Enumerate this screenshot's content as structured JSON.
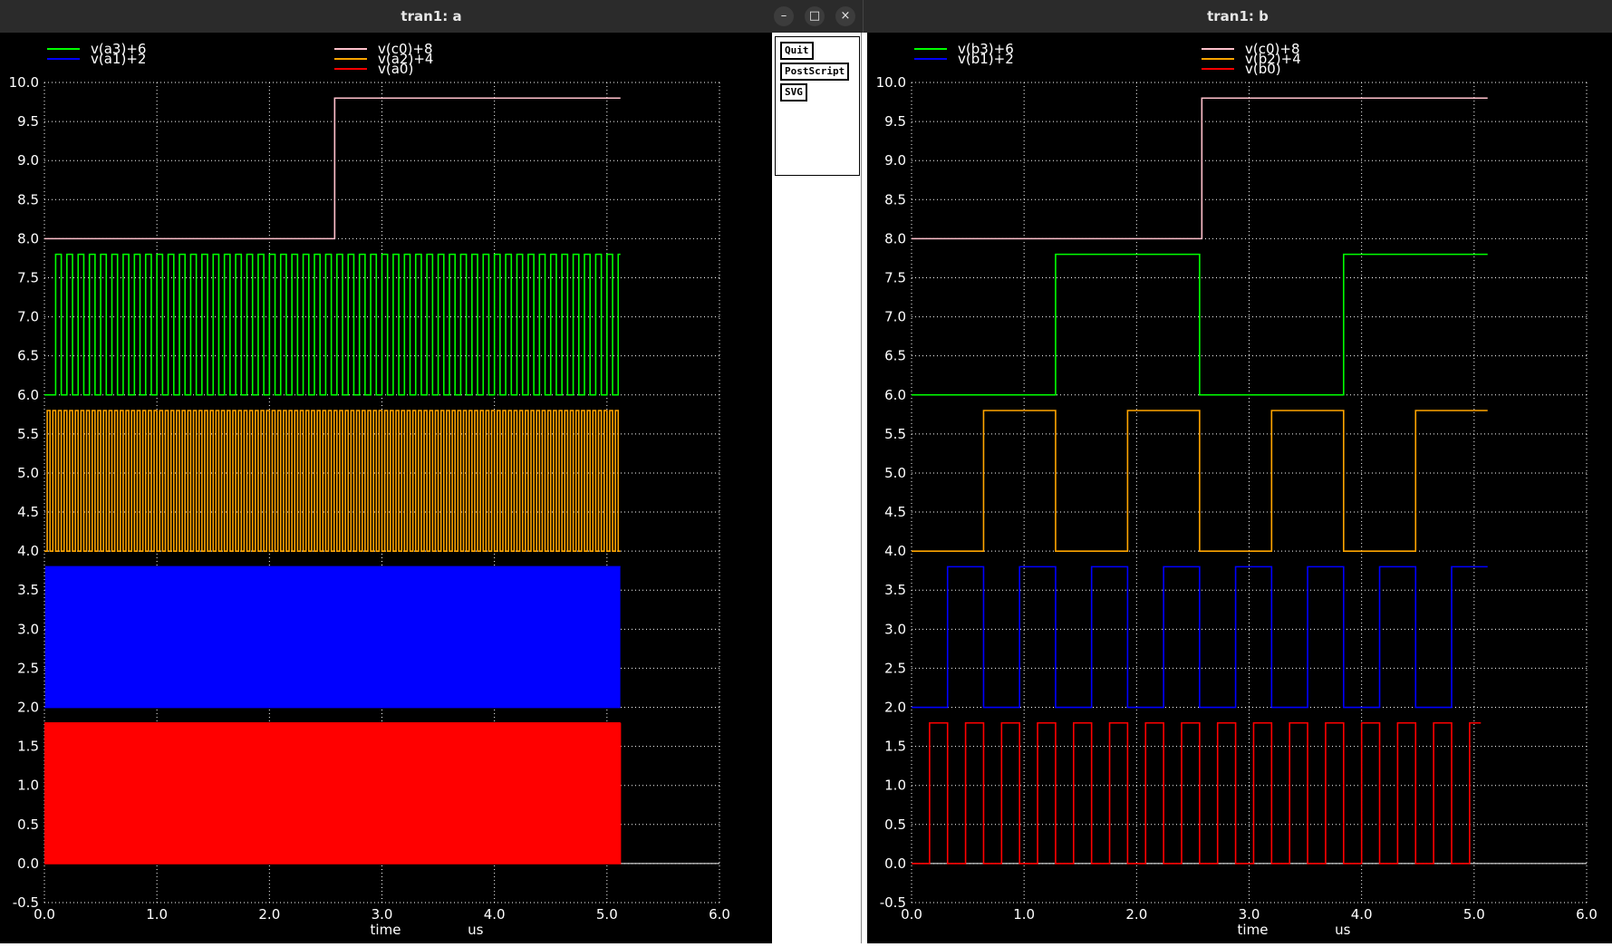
{
  "window_a": {
    "title": "tran1: a",
    "buttons": {
      "minimize": "–",
      "maximize": "□",
      "close": "×"
    }
  },
  "window_b": {
    "title": "tran1: b"
  },
  "panel": {
    "quit": "Quit",
    "postscript": "PostScript",
    "svg": "SVG"
  },
  "colors": {
    "bg": "#000000",
    "grid": "#ffffff",
    "green": "#00ff00",
    "blue": "#0000ff",
    "pink": "#ffc0cb",
    "orange": "#ffa500",
    "red": "#ff0000"
  },
  "chart_data": [
    {
      "type": "line",
      "title": "tran1: a",
      "xlabel": "time",
      "xunit": "us",
      "xlim": [
        0,
        6
      ],
      "ylim": [
        -0.5,
        10
      ],
      "x_ticks": [
        "0.0",
        "1.0",
        "2.0",
        "3.0",
        "4.0",
        "5.0",
        "6.0"
      ],
      "y_ticks": [
        "-0.5",
        "0.0",
        "0.5",
        "1.0",
        "1.5",
        "2.0",
        "2.5",
        "3.0",
        "3.5",
        "4.0",
        "4.5",
        "5.0",
        "5.5",
        "6.0",
        "6.5",
        "7.0",
        "7.5",
        "8.0",
        "8.5",
        "9.0",
        "9.5",
        "10.0"
      ],
      "legend": [
        "v(a3)+6",
        "v(a1)+2",
        "v(c0)+8",
        "v(a2)+4",
        "v(a0)"
      ],
      "series": [
        {
          "name": "v(a3)+6",
          "color": "#00ff00",
          "low": 6.0,
          "high": 7.8,
          "period": 0.1,
          "t0": 0.1,
          "tend": 5.12
        },
        {
          "name": "v(a1)+2",
          "color": "#0000ff",
          "low": 2.0,
          "high": 3.8,
          "period": 0.025,
          "t0": 0.0,
          "tend": 5.12
        },
        {
          "name": "v(c0)+8",
          "color": "#ffc0cb",
          "low": 8.0,
          "high": 9.8,
          "step_at": 2.58,
          "t0": 0.0,
          "tend": 5.12
        },
        {
          "name": "v(a2)+4",
          "color": "#ffa500",
          "low": 4.0,
          "high": 5.8,
          "period": 0.05,
          "t0": 0.0,
          "tend": 5.12
        },
        {
          "name": "v(a0)",
          "color": "#ff0000",
          "low": 0.0,
          "high": 1.8,
          "period": 0.0125,
          "t0": 0.0,
          "tend": 5.12
        }
      ]
    },
    {
      "type": "line",
      "title": "tran1: b",
      "xlabel": "time",
      "xunit": "us",
      "xlim": [
        0,
        6
      ],
      "ylim": [
        -0.5,
        10
      ],
      "x_ticks": [
        "0.0",
        "1.0",
        "2.0",
        "3.0",
        "4.0",
        "5.0",
        "6.0"
      ],
      "y_ticks": [
        "-0.5",
        "0.0",
        "0.5",
        "1.0",
        "1.5",
        "2.0",
        "2.5",
        "3.0",
        "3.5",
        "4.0",
        "4.5",
        "5.0",
        "5.5",
        "6.0",
        "6.5",
        "7.0",
        "7.5",
        "8.0",
        "8.5",
        "9.0",
        "9.5",
        "10.0"
      ],
      "legend": [
        "v(b3)+6",
        "v(b1)+2",
        "v(c0)+8",
        "v(b2)+4",
        "v(b0)"
      ],
      "series": [
        {
          "name": "v(b3)+6",
          "color": "#00ff00",
          "low": 6.0,
          "high": 7.8,
          "period": 2.56,
          "t0": 0.0,
          "tend": 5.12
        },
        {
          "name": "v(b1)+2",
          "color": "#0000ff",
          "low": 2.0,
          "high": 3.8,
          "period": 0.64,
          "t0": 0.0,
          "tend": 5.12
        },
        {
          "name": "v(c0)+8",
          "color": "#ffc0cb",
          "low": 8.0,
          "high": 9.8,
          "step_at": 2.58,
          "t0": 0.0,
          "tend": 5.12
        },
        {
          "name": "v(b2)+4",
          "color": "#ffa500",
          "low": 4.0,
          "high": 5.8,
          "period": 1.28,
          "t0": 0.0,
          "tend": 5.12
        },
        {
          "name": "v(b0)",
          "color": "#ff0000",
          "low": 0.0,
          "high": 1.8,
          "period": 0.32,
          "t0": 0.0,
          "tend": 5.06
        }
      ]
    }
  ]
}
